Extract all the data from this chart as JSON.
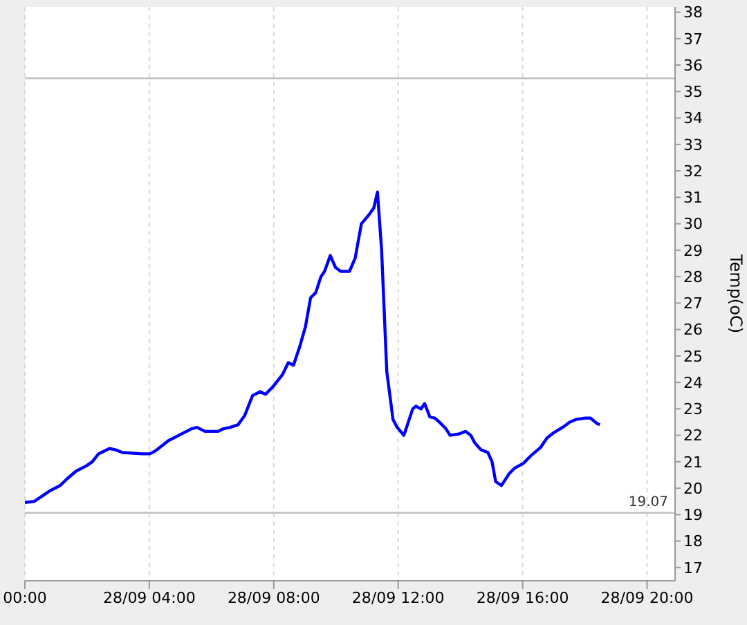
{
  "chart_data": {
    "type": "line",
    "ylabel": "Temp(oC)",
    "xlim": [
      "--09-28T00:00",
      "--09-28T20:54"
    ],
    "ylim": [
      16.5,
      38.2
    ],
    "xticks": [
      {
        "value": "--09-28T00:00",
        "label": "00:00"
      },
      {
        "value": "--09-28T04:00",
        "label": "28/09 04:00"
      },
      {
        "value": "--09-28T08:00",
        "label": "28/09 08:00"
      },
      {
        "value": "--09-28T12:00",
        "label": "28/09 12:00"
      },
      {
        "value": "--09-28T16:00",
        "label": "28/09 16:00"
      },
      {
        "value": "--09-28T20:00",
        "label": "28/09 20:00"
      }
    ],
    "yticks": [
      17,
      18,
      19,
      20,
      21,
      22,
      23,
      24,
      25,
      26,
      27,
      28,
      29,
      30,
      31,
      32,
      33,
      34,
      35,
      36,
      37,
      38
    ],
    "grid": "x",
    "legend": false,
    "marker": "none",
    "line_style": "solid",
    "ref_lines": [
      {
        "axis": "y",
        "value": 35.5,
        "label": null,
        "color": "#c0c0c0"
      },
      {
        "axis": "y",
        "value": 19.07,
        "label": "19.07",
        "color": "#c0c0c0"
      }
    ],
    "series": [
      {
        "color": "#0000ff",
        "x": [
          "--09-28T00:00",
          "--09-28T00:18",
          "--09-28T00:33",
          "--09-28T00:48",
          "--09-28T01:08",
          "--09-28T01:21",
          "--09-28T01:39",
          "--09-28T01:59",
          "--09-28T02:10",
          "--09-28T02:22",
          "--09-28T02:43",
          "--09-28T02:55",
          "--09-28T03:08",
          "--09-28T03:46",
          "--09-28T04:01",
          "--09-28T04:11",
          "--09-28T04:24",
          "--09-28T04:37",
          "--09-28T04:57",
          "--09-28T05:22",
          "--09-28T05:32",
          "--09-28T05:47",
          "--09-28T06:13",
          "--09-28T06:23",
          "--09-28T06:36",
          "--09-28T06:51",
          "--09-28T07:04",
          "--09-28T07:19",
          "--09-28T07:34",
          "--09-28T07:44",
          "--09-28T07:59",
          "--09-28T08:17",
          "--09-28T08:28",
          "--09-28T08:38",
          "--09-28T08:50",
          "--09-28T09:01",
          "--09-28T09:11",
          "--09-28T09:21",
          "--09-28T09:31",
          "--09-28T09:38",
          "--09-28T09:49",
          "--09-28T09:59",
          "--09-28T10:09",
          "--09-28T10:26",
          "--09-28T10:37",
          "--09-28T10:49",
          "--09-28T11:02",
          "--09-28T11:13",
          "--09-28T11:20",
          "--09-28T11:28",
          "--09-28T11:38",
          "--09-28T11:50",
          "--09-28T11:58",
          "--09-28T12:11",
          "--09-28T12:28",
          "--09-28T12:34",
          "--09-28T12:44",
          "--09-28T12:51",
          "--09-28T13:01",
          "--09-28T13:11",
          "--09-28T13:22",
          "--09-28T13:32",
          "--09-28T13:40",
          "--09-28T13:57",
          "--09-28T14:10",
          "--09-28T14:20",
          "--09-28T14:28",
          "--09-28T14:40",
          "--09-28T14:53",
          "--09-28T15:01",
          "--09-28T15:08",
          "--09-28T15:19",
          "--09-28T15:34",
          "--09-28T15:44",
          "--09-28T16:02",
          "--09-28T16:17",
          "--09-28T16:35",
          "--09-28T16:47",
          "--09-28T17:00",
          "--09-28T17:17",
          "--09-28T17:31",
          "--09-28T17:43",
          "--09-28T18:01",
          "--09-28T18:11",
          "--09-28T18:23",
          "--09-28T18:29"
        ],
        "values": [
          19.46,
          19.5,
          19.7,
          19.9,
          20.1,
          20.35,
          20.65,
          20.85,
          21.0,
          21.3,
          21.5,
          21.45,
          21.35,
          21.3,
          21.3,
          21.4,
          21.6,
          21.8,
          22.0,
          22.25,
          22.3,
          22.15,
          22.15,
          22.25,
          22.3,
          22.4,
          22.75,
          23.5,
          23.65,
          23.55,
          23.85,
          24.3,
          24.75,
          24.65,
          25.35,
          26.1,
          27.2,
          27.4,
          28.0,
          28.2,
          28.8,
          28.35,
          28.2,
          28.2,
          28.7,
          30.0,
          30.3,
          30.6,
          31.2,
          29.0,
          24.4,
          22.6,
          22.3,
          22.0,
          23.0,
          23.1,
          23.0,
          23.2,
          22.7,
          22.65,
          22.45,
          22.25,
          22.0,
          22.05,
          22.15,
          22.0,
          21.7,
          21.45,
          21.35,
          21.0,
          20.25,
          20.1,
          20.55,
          20.75,
          20.95,
          21.25,
          21.55,
          21.9,
          22.1,
          22.3,
          22.5,
          22.6,
          22.65,
          22.65,
          22.45,
          22.4
        ]
      }
    ]
  }
}
